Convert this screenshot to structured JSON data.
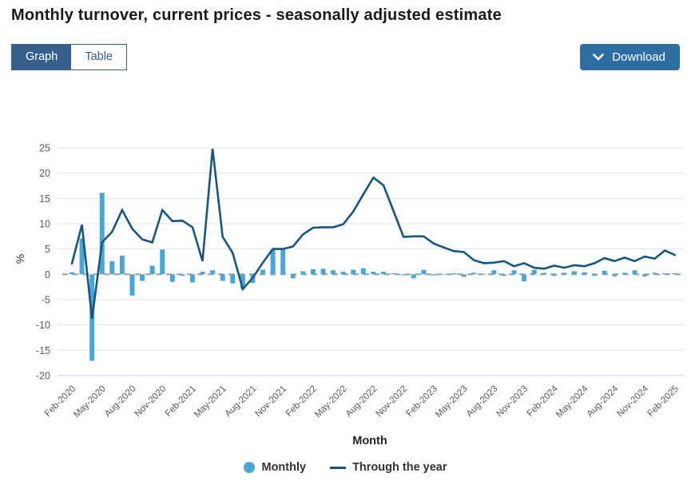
{
  "header": {
    "title": "Monthly turnover, current prices - seasonally adjusted estimate"
  },
  "tabs": {
    "graph_label": "Graph",
    "table_label": "Table",
    "active": "Graph"
  },
  "download": {
    "label": "Download"
  },
  "colors": {
    "tab_blue": "#36618f",
    "download_blue": "#2e6da4",
    "bar": "#4aa6d6",
    "line": "#17567d",
    "grid": "#e4e4e4",
    "bottom_axis": "#c6d3e6",
    "zero_line": "#a0a0a0",
    "tick_text": "#595959"
  },
  "chart_data": {
    "type": "bar+line",
    "title": "Monthly turnover, current prices - seasonally adjusted estimate",
    "xlabel": "Month",
    "ylabel": "%",
    "ylim": [
      -20,
      25
    ],
    "ytick_step": 5,
    "yticks": [
      25,
      20,
      15,
      10,
      5,
      0,
      -5,
      -10,
      -15,
      -20
    ],
    "grid": true,
    "zero_line": "dashed",
    "x_tick_every": 3,
    "legend_position": "bottom",
    "categories": [
      "Feb-2020",
      "Mar-2020",
      "Apr-2020",
      "May-2020",
      "Jun-2020",
      "Jul-2020",
      "Aug-2020",
      "Sep-2020",
      "Oct-2020",
      "Nov-2020",
      "Dec-2020",
      "Jan-2021",
      "Feb-2021",
      "Mar-2021",
      "Apr-2021",
      "May-2021",
      "Jun-2021",
      "Jul-2021",
      "Aug-2021",
      "Sep-2021",
      "Oct-2021",
      "Nov-2021",
      "Dec-2021",
      "Jan-2022",
      "Feb-2022",
      "Mar-2022",
      "Apr-2022",
      "May-2022",
      "Jun-2022",
      "Jul-2022",
      "Aug-2022",
      "Sep-2022",
      "Oct-2022",
      "Nov-2022",
      "Dec-2022",
      "Jan-2023",
      "Feb-2023",
      "Mar-2023",
      "Apr-2023",
      "May-2023",
      "Jun-2023",
      "Jul-2023",
      "Aug-2023",
      "Sep-2023",
      "Oct-2023",
      "Nov-2023",
      "Dec-2023",
      "Jan-2024",
      "Feb-2024",
      "Mar-2024",
      "Apr-2024",
      "May-2024",
      "Jun-2024",
      "Jul-2024",
      "Aug-2024",
      "Sep-2024",
      "Oct-2024",
      "Nov-2024",
      "Dec-2024",
      "Jan-2025",
      "Feb-2025"
    ],
    "series": [
      {
        "name": "Monthly",
        "type": "bar",
        "color": "#4aa6d6",
        "values": [
          0.4,
          7.1,
          -17.1,
          16.1,
          2.6,
          3.7,
          -4.2,
          -1.3,
          1.7,
          4.9,
          -1.5,
          -0.3,
          -1.6,
          0.5,
          0.8,
          -1.3,
          -1.8,
          -2.8,
          -1.7,
          0.9,
          4.9,
          5.0,
          -0.8,
          0.6,
          1.0,
          1.1,
          0.8,
          0.5,
          0.9,
          1.2,
          0.5,
          0.5,
          0.2,
          -0.2,
          -0.8,
          0.9,
          -0.2,
          -0.1,
          0.2,
          -0.5,
          0.3,
          0.1,
          0.8,
          -0.3,
          0.8,
          -1.4,
          0.9,
          0.3,
          -0.3,
          0.3,
          0.6,
          0.4,
          -0.3,
          0.7,
          -0.4,
          0.3,
          0.8,
          -0.4,
          0.3,
          0.2,
          0.2
        ]
      },
      {
        "name": "Through the year",
        "type": "line",
        "color": "#17567d",
        "values": [
          2.1,
          9.8,
          -8.8,
          6.3,
          8.4,
          12.7,
          9.0,
          6.9,
          6.3,
          12.7,
          10.5,
          10.6,
          9.3,
          2.6,
          24.8,
          7.4,
          4.2,
          -2.9,
          -0.7,
          2.3,
          5.0,
          5.0,
          5.5,
          7.9,
          9.2,
          9.3,
          9.3,
          9.9,
          12.4,
          15.8,
          19.1,
          17.6,
          12.5,
          7.4,
          7.5,
          7.5,
          6.1,
          5.3,
          4.6,
          4.4,
          2.8,
          2.2,
          2.3,
          2.6,
          1.6,
          2.2,
          1.3,
          1.1,
          1.7,
          1.3,
          1.8,
          1.6,
          2.2,
          3.2,
          2.6,
          3.3,
          2.6,
          3.5,
          3.1,
          4.7,
          3.8
        ]
      }
    ]
  }
}
